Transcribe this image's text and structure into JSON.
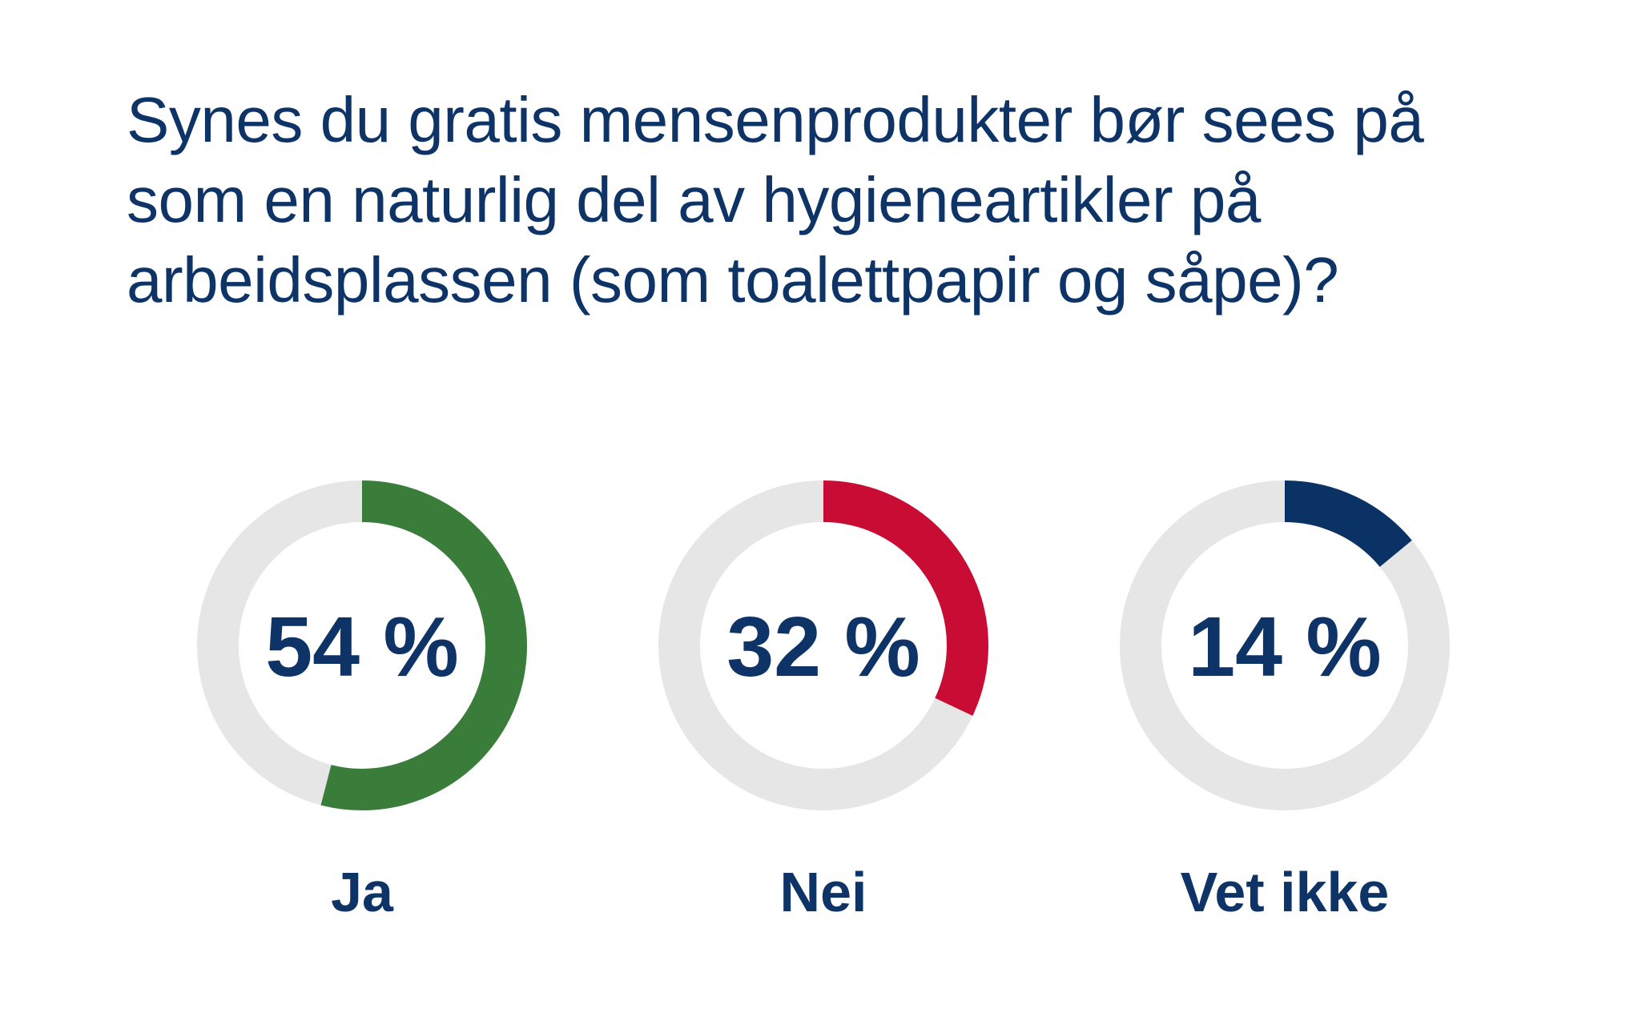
{
  "colors": {
    "text": "#0e3366",
    "track": "#e6e6e6"
  },
  "chart_data": {
    "type": "pie",
    "title": "Synes du gratis mensenprodukter bør sees på som en naturlig del av hygieneartikler på arbeidsplassen (som toalettpapir og såpe)?",
    "unit": "%",
    "categories": [
      "Ja",
      "Nei",
      "Vet ikke"
    ],
    "values": [
      54,
      32,
      14
    ],
    "value_labels": [
      "54 %",
      "32 %",
      "14 %"
    ],
    "colors": [
      "#3a7d3a",
      "#c80c33",
      "#0a3264"
    ]
  }
}
